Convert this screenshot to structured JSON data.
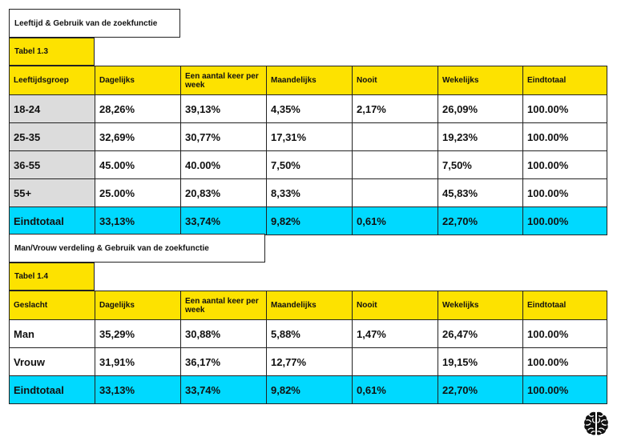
{
  "section1": {
    "title": "Leeftijd & Gebruik van de zoekfunctie",
    "table_label": "Tabel 1.3",
    "headers": [
      "Leeftijdsgroep",
      "Dagelijks",
      "Een aantal keer per week",
      "Maandelijks",
      "Nooit",
      "Wekelijks",
      "Eindtotaal"
    ],
    "rows": [
      [
        "18-24",
        "28,26%",
        "39,13%",
        "4,35%",
        "2,17%",
        "26,09%",
        "100.00%"
      ],
      [
        "25-35",
        "32,69%",
        "30,77%",
        "17,31%",
        "",
        "19,23%",
        "100.00%"
      ],
      [
        "36-55",
        "45.00%",
        "40.00%",
        "7,50%",
        "",
        "7,50%",
        "100.00%"
      ],
      [
        "55+",
        "25.00%",
        "20,83%",
        "8,33%",
        "",
        "45,83%",
        "100.00%"
      ]
    ],
    "total": [
      "Eindtotaal",
      "33,13%",
      "33,74%",
      "9,82%",
      "0,61%",
      "22,70%",
      "100.00%"
    ]
  },
  "section2": {
    "title": "Man/Vrouw verdeling & Gebruik van de zoekfunctie",
    "table_label": "Tabel 1.4",
    "headers": [
      "Geslacht",
      "Dagelijks",
      "Een aantal keer per week",
      "Maandelijks",
      "Nooit",
      "Wekelijks",
      "Eindtotaal"
    ],
    "rows": [
      [
        "Man",
        "35,29%",
        "30,88%",
        "5,88%",
        "1,47%",
        "26,47%",
        "100.00%"
      ],
      [
        "Vrouw",
        "31,91%",
        "36,17%",
        "12,77%",
        "",
        "19,15%",
        "100.00%"
      ]
    ],
    "total": [
      "Eindtotaal",
      "33,13%",
      "33,74%",
      "9,82%",
      "0,61%",
      "22,70%",
      "100.00%"
    ]
  },
  "logo": {
    "icon": "brain-icon"
  },
  "colors": {
    "header": "#fde200",
    "total": "#00d9ff",
    "row_label": "#dcdcdc"
  }
}
